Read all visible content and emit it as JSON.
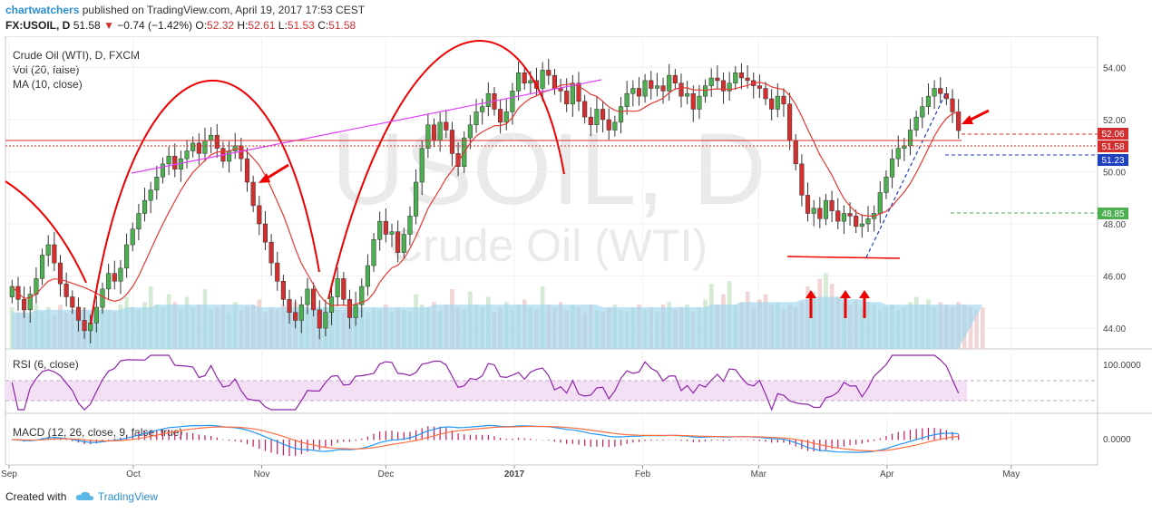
{
  "header": {
    "author": "chartwatchers",
    "published_text": "published on TradingView.com, April 19, 2017 17:53 CEST"
  },
  "quote": {
    "symbol": "FX:USOIL, D",
    "last": "51.58",
    "direction_icon": "down-triangle-icon",
    "change": "−0.74 (−1.42%)",
    "o_label": "O:",
    "o": "52.32",
    "h_label": "H:",
    "h": "52.61",
    "l_label": "L:",
    "l": "51.53",
    "c_label": "C:",
    "c": "51.58"
  },
  "legend": {
    "main": "Crude Oil (WTI), D, FXCM",
    "vol": "Vol (20, false)",
    "ma": "MA (10, close)"
  },
  "watermark": {
    "line1": "USOIL, D",
    "line2": "Crude Oil (WTI)"
  },
  "rsi": {
    "label": "RSI (6, close)",
    "tick": "100.0000"
  },
  "macd": {
    "label": "MACD (12, 26, close, 9, false, true)",
    "tick": "0.0000"
  },
  "footer": {
    "created_with": "Created with",
    "brand": "TradingView"
  },
  "colors": {
    "up": "#26a69a",
    "up_fill": "#4caf50",
    "down": "#d32f2f",
    "ma": "#e53935",
    "volume": "#9fd6ee",
    "trendline": "#e040fb",
    "rsi": "#8e24aa",
    "macd": "#2196f3",
    "signal": "#ff7043"
  },
  "chart_data": {
    "type": "candlestick",
    "symbol": "USOIL",
    "timeframe": "D",
    "price_axis": {
      "ticks": [
        "54.00",
        "52.00",
        "50.00",
        "48.00",
        "46.00",
        "44.00"
      ],
      "range": [
        43.2,
        55.2
      ]
    },
    "x_axis_labels": [
      "Sep",
      "Oct",
      "Nov",
      "Dec",
      "2017",
      "Feb",
      "Mar",
      "Apr",
      "May"
    ],
    "x_axis_label_days": [
      0,
      30,
      61,
      91,
      122,
      153,
      181,
      212,
      242
    ],
    "price_labels": [
      {
        "value": "52.06",
        "color": "#d32f2f"
      },
      {
        "value": "51.58",
        "color": "#d32f2f"
      },
      {
        "value": "51.23",
        "color": "#1e3fc0"
      },
      {
        "value": "48.85",
        "color": "#4caf50"
      }
    ],
    "start_close": 45.2,
    "closes": [
      45.6,
      45.1,
      44.7,
      45.3,
      45.9,
      46.8,
      47.2,
      46.5,
      45.7,
      45.2,
      44.8,
      44.3,
      43.9,
      44.2,
      44.8,
      45.5,
      46.1,
      45.8,
      46.3,
      47.2,
      47.8,
      48.4,
      48.9,
      49.3,
      49.8,
      50.3,
      50.6,
      50.1,
      50.5,
      50.8,
      51.1,
      50.7,
      51.2,
      51.4,
      50.9,
      50.4,
      50.8,
      51.0,
      50.5,
      49.6,
      48.7,
      48.0,
      47.3,
      46.5,
      45.8,
      45.1,
      44.6,
      44.3,
      44.9,
      45.5,
      44.7,
      44.0,
      44.6,
      45.2,
      45.9,
      45.1,
      44.4,
      44.9,
      45.6,
      46.4,
      47.4,
      48.1,
      47.6,
      47.7,
      46.9,
      47.6,
      48.3,
      49.6,
      50.9,
      51.8,
      51.2,
      51.9,
      51.6,
      50.7,
      50.2,
      51.3,
      51.8,
      52.3,
      52.5,
      53.0,
      52.4,
      51.9,
      52.3,
      53.1,
      53.8,
      53.4,
      53.5,
      53.2,
      53.9,
      53.7,
      53.2,
      53.1,
      52.6,
      53.4,
      52.7,
      52.1,
      51.8,
      52.4,
      52.0,
      51.6,
      51.9,
      52.5,
      53.0,
      53.2,
      52.9,
      53.5,
      53.2,
      53.3,
      53.1,
      53.7,
      53.4,
      52.9,
      53.0,
      52.4,
      52.9,
      53.3,
      53.6,
      53.5,
      53.1,
      53.4,
      53.8,
      53.6,
      53.5,
      53.3,
      53.2,
      52.8,
      52.4,
      52.9,
      52.6,
      51.2,
      50.3,
      49.1,
      48.4,
      48.6,
      48.2,
      48.9,
      48.5,
      48.1,
      48.4,
      48.3,
      47.9,
      48.0,
      48.2,
      48.4,
      49.2,
      49.8,
      50.5,
      50.9,
      51.0,
      51.6,
      52.1,
      52.5,
      52.9,
      53.2,
      53.0,
      52.8,
      52.3,
      51.58
    ],
    "vol_scale": [
      43.2,
      46.6
    ],
    "volume_base": [
      44.8,
      44.6,
      44.7,
      44.5,
      44.9,
      44.6,
      44.8,
      44.5,
      44.9,
      44.6,
      44.7,
      44.4,
      44.8,
      44.6,
      44.5,
      45.1,
      44.7,
      44.6,
      44.9,
      45.2,
      44.8,
      44.7,
      45.0,
      45.6,
      44.9,
      44.8,
      45.3,
      45.0,
      44.7,
      45.2,
      44.8,
      44.9,
      45.5,
      44.7,
      44.8,
      44.9,
      44.6,
      45.0,
      44.7,
      44.8,
      44.9,
      45.1,
      44.6,
      44.8,
      44.7,
      44.9,
      44.6,
      45.0,
      44.8,
      44.7,
      44.9,
      44.6,
      44.8,
      45.0,
      44.7,
      44.6,
      44.8,
      44.9,
      44.7,
      44.6,
      44.8,
      44.7,
      44.9,
      44.6,
      44.8,
      44.7,
      44.6,
      45.3,
      44.9,
      44.8,
      45.0,
      44.7,
      44.9,
      45.5,
      44.8,
      44.7,
      45.4,
      44.9,
      44.8,
      45.2,
      44.6,
      44.8,
      45.0,
      44.7,
      44.9,
      45.1,
      44.8,
      44.7,
      45.6,
      44.9,
      44.8,
      45.0,
      44.7,
      44.9,
      44.8,
      44.6,
      44.9,
      44.7,
      44.6,
      44.8,
      44.9,
      44.7,
      44.6,
      44.8,
      44.9,
      44.7,
      44.8,
      44.6,
      44.9,
      45.0,
      44.7,
      44.8,
      44.9,
      44.6,
      44.8,
      45.1,
      45.7,
      44.9,
      45.3,
      45.8,
      44.9,
      45.0,
      45.4,
      44.8,
      45.1,
      45.3,
      44.9,
      45.0,
      44.7,
      44.9,
      44.8,
      45.0,
      45.6,
      45.4,
      45.9,
      46.1,
      45.7,
      45.2,
      45.0,
      44.9,
      45.1,
      44.8,
      45.0,
      44.9,
      44.7,
      44.8,
      44.9,
      44.7,
      44.8,
      45.0,
      45.2,
      44.9,
      45.1,
      44.8,
      45.0,
      44.9,
      44.8,
      45.0,
      44.9,
      44.8,
      44.7,
      44.8
    ],
    "volume_ma": [
      44.6,
      44.6,
      44.6,
      44.6,
      44.7,
      44.7,
      44.7,
      44.7,
      44.7,
      44.7,
      44.7,
      44.7,
      44.7,
      44.7,
      44.7,
      44.7,
      44.7,
      44.7,
      44.7,
      44.8,
      44.8,
      44.8,
      44.8,
      44.8,
      44.9,
      44.9,
      44.9,
      44.9,
      44.9,
      44.9,
      44.9,
      44.9,
      44.9,
      44.9,
      44.9,
      44.9,
      44.9,
      44.9,
      44.9,
      44.9,
      44.9,
      44.8,
      44.8,
      44.8,
      44.8,
      44.8,
      44.8,
      44.8,
      44.8,
      44.8,
      44.8,
      44.8,
      44.8,
      44.8,
      44.8,
      44.8,
      44.8,
      44.8,
      44.8,
      44.8,
      44.8,
      44.8,
      44.8,
      44.8,
      44.8,
      44.8,
      44.8,
      44.8,
      44.8,
      44.8,
      44.9,
      44.9,
      44.9,
      44.9,
      44.9,
      44.9,
      44.9,
      44.9,
      44.9,
      44.9,
      44.9,
      44.9,
      44.9,
      44.9,
      44.9,
      44.9,
      44.9,
      44.9,
      44.9,
      44.9,
      44.9,
      44.9,
      44.9,
      44.9,
      44.9,
      44.9,
      44.9,
      44.9,
      44.8,
      44.8,
      44.8,
      44.8,
      44.8,
      44.8,
      44.8,
      44.8,
      44.8,
      44.8,
      44.8,
      44.8,
      44.8,
      44.8,
      44.8,
      44.8,
      44.8,
      44.8,
      44.9,
      44.9,
      44.9,
      44.9,
      44.9,
      45.0,
      45.0,
      45.0,
      45.0,
      45.0,
      45.0,
      45.0,
      45.0,
      45.0,
      45.0,
      45.1,
      45.1,
      45.2,
      45.2,
      45.2,
      45.2,
      45.2,
      45.2,
      45.1,
      45.1,
      45.1,
      45.0,
      45.0,
      45.0,
      44.9,
      44.9,
      44.9,
      44.9,
      44.9,
      44.9,
      44.9,
      44.9,
      44.9,
      44.9,
      44.9,
      44.9,
      44.9,
      44.9,
      44.9,
      44.9,
      44.9
    ],
    "macd_note": "oscillator rises into Oct, dips Nov, peaks Dec/Jan, flat Feb, drops Mar, recovers Apr",
    "annotations": [
      "head-and-shoulders arcs (red)",
      "rising trendline (magenta)",
      "support line ~47.0 (red)",
      "up arrows near Mar lows",
      "down arrows at Oct and Apr tops"
    ]
  }
}
